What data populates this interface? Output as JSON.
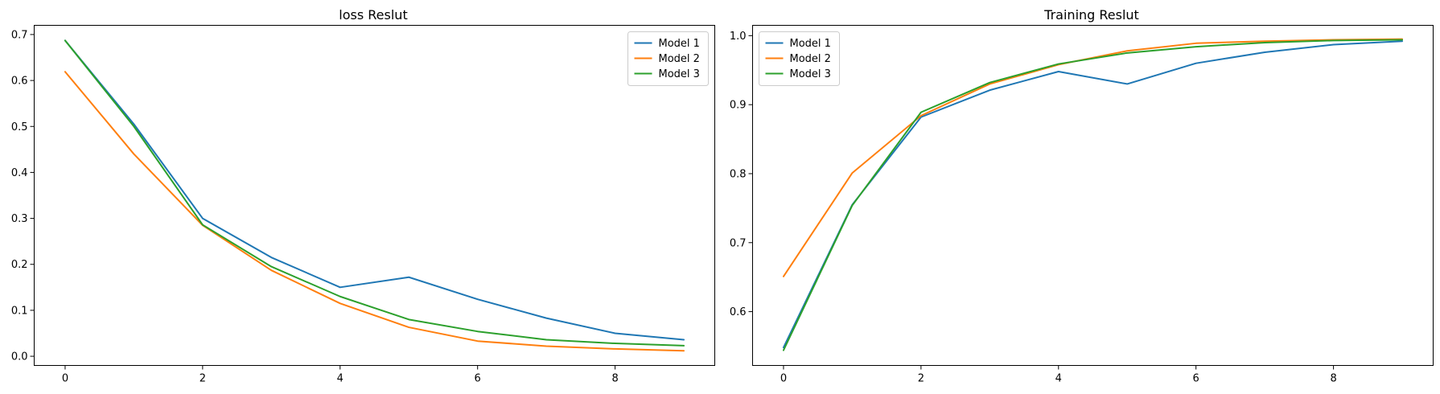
{
  "chart_data": [
    {
      "type": "line",
      "title": "loss Reslut",
      "xlabel": "",
      "ylabel": "",
      "xlim": [
        -0.45,
        9.45
      ],
      "ylim": [
        -0.02,
        0.72
      ],
      "xticks": [
        0,
        2,
        4,
        6,
        8
      ],
      "yticks": [
        0.0,
        0.1,
        0.2,
        0.3,
        0.4,
        0.5,
        0.6,
        0.7
      ],
      "ytick_decimals": 1,
      "grid": false,
      "legend_position": "top-right",
      "x": [
        0,
        1,
        2,
        3,
        4,
        5,
        6,
        7,
        8,
        9
      ],
      "series": [
        {
          "name": "Model 1",
          "color": "#1f77b4",
          "values": [
            0.687,
            0.505,
            0.3,
            0.215,
            0.15,
            0.172,
            0.124,
            0.083,
            0.05,
            0.036
          ]
        },
        {
          "name": "Model 2",
          "color": "#ff7f0e",
          "values": [
            0.619,
            0.44,
            0.285,
            0.187,
            0.115,
            0.063,
            0.033,
            0.022,
            0.016,
            0.012
          ]
        },
        {
          "name": "Model 3",
          "color": "#2ca02c",
          "values": [
            0.687,
            0.5,
            0.286,
            0.195,
            0.13,
            0.08,
            0.054,
            0.036,
            0.028,
            0.023
          ]
        }
      ]
    },
    {
      "type": "line",
      "title": "Training Reslut",
      "xlabel": "",
      "ylabel": "",
      "xlim": [
        -0.45,
        9.45
      ],
      "ylim": [
        0.522,
        1.015
      ],
      "xticks": [
        0,
        2,
        4,
        6,
        8
      ],
      "yticks": [
        0.6,
        0.7,
        0.8,
        0.9,
        1.0
      ],
      "ytick_decimals": 1,
      "grid": false,
      "legend_position": "top-left",
      "x": [
        0,
        1,
        2,
        3,
        4,
        5,
        6,
        7,
        8,
        9
      ],
      "series": [
        {
          "name": "Model 1",
          "color": "#1f77b4",
          "values": [
            0.548,
            0.755,
            0.882,
            0.921,
            0.948,
            0.93,
            0.96,
            0.976,
            0.987,
            0.992
          ]
        },
        {
          "name": "Model 2",
          "color": "#ff7f0e",
          "values": [
            0.651,
            0.801,
            0.884,
            0.93,
            0.958,
            0.978,
            0.989,
            0.992,
            0.994,
            0.995
          ]
        },
        {
          "name": "Model 3",
          "color": "#2ca02c",
          "values": [
            0.544,
            0.754,
            0.889,
            0.932,
            0.959,
            0.975,
            0.984,
            0.99,
            0.993,
            0.994
          ]
        }
      ]
    }
  ]
}
